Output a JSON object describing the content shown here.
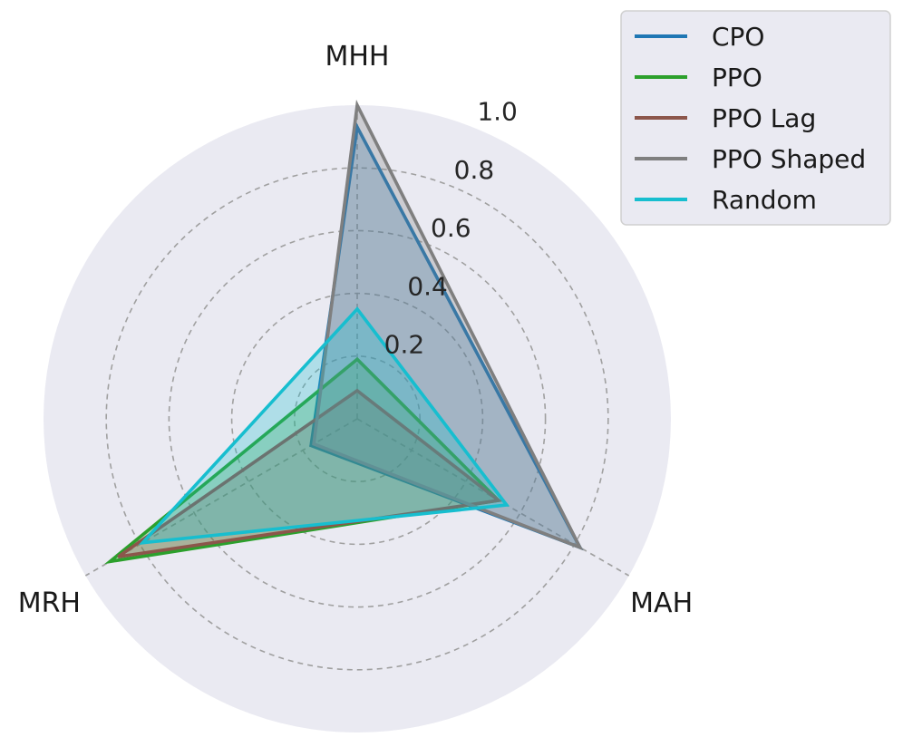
{
  "chart_data": {
    "type": "radar",
    "axes": [
      "MHH",
      "MAH",
      "MRH"
    ],
    "rlim": [
      0,
      1.0
    ],
    "rticks": [
      0.2,
      0.4,
      0.6,
      0.8,
      1.0
    ],
    "rtick_labels": [
      "0.2",
      "0.4",
      "0.6",
      "0.8",
      "1.0"
    ],
    "grid": true,
    "legend_position": "top-right",
    "series": [
      {
        "name": "CPO",
        "color": "#1f77b4",
        "values": [
          0.93,
          0.82,
          0.17
        ]
      },
      {
        "name": "PPO",
        "color": "#2ca02c",
        "values": [
          0.19,
          0.52,
          0.91
        ]
      },
      {
        "name": "PPO Lag",
        "color": "#8c564b",
        "values": [
          0.09,
          0.52,
          0.88
        ]
      },
      {
        "name": "PPO Shaped",
        "color": "#7f7f7f",
        "values": [
          1.0,
          0.82,
          0.16
        ]
      },
      {
        "name": "Random",
        "color": "#17becf",
        "values": [
          0.35,
          0.55,
          0.79
        ]
      }
    ]
  }
}
